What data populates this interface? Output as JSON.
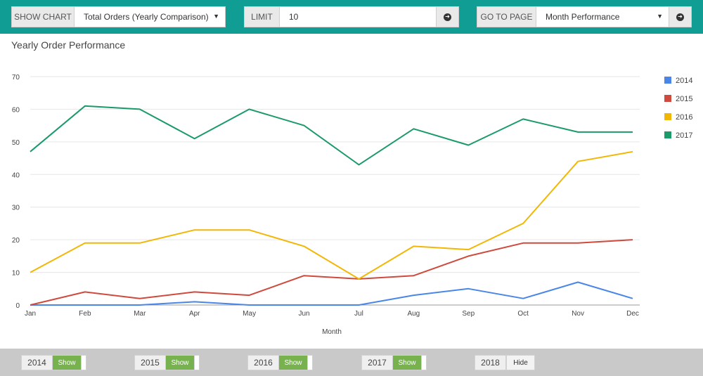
{
  "toolbar": {
    "show_chart_label": "SHOW CHART",
    "show_chart_value": "Total Orders (Yearly Comparison)",
    "limit_label": "LIMIT",
    "limit_value": "10",
    "go_to_page_label": "GO TO PAGE",
    "go_to_page_value": "Month Performance"
  },
  "colors": {
    "toolbar_bg": "#109d94",
    "s2014": "#4a86e8",
    "s2015": "#cf4a3c",
    "s2016": "#f2b705",
    "s2017": "#1b9a6a",
    "toggle_on": "#78b24f"
  },
  "chart_data": {
    "type": "line",
    "title": "Yearly Order Performance",
    "xlabel": "Month",
    "ylabel": "",
    "ylim": [
      0,
      70
    ],
    "yticks": [
      0,
      10,
      20,
      30,
      40,
      50,
      60,
      70
    ],
    "grid": true,
    "legend_position": "right",
    "categories": [
      "Jan",
      "Feb",
      "Mar",
      "Apr",
      "May",
      "Jun",
      "Jul",
      "Aug",
      "Sep",
      "Oct",
      "Nov",
      "Dec"
    ],
    "series": [
      {
        "name": "2014",
        "color": "#4a86e8",
        "values": [
          0,
          0,
          0,
          1,
          0,
          0,
          0,
          3,
          5,
          2,
          7,
          2
        ]
      },
      {
        "name": "2015",
        "color": "#cf4a3c",
        "values": [
          0,
          4,
          2,
          4,
          3,
          9,
          8,
          9,
          15,
          19,
          19,
          20
        ]
      },
      {
        "name": "2016",
        "color": "#f2b705",
        "values": [
          10,
          19,
          19,
          23,
          23,
          18,
          8,
          18,
          17,
          25,
          44,
          47
        ]
      },
      {
        "name": "2017",
        "color": "#1b9a6a",
        "values": [
          47,
          61,
          60,
          51,
          60,
          55,
          43,
          54,
          49,
          57,
          53,
          53
        ]
      }
    ]
  },
  "year_toggles": [
    {
      "year": "2014",
      "state": "Show"
    },
    {
      "year": "2015",
      "state": "Show"
    },
    {
      "year": "2016",
      "state": "Show"
    },
    {
      "year": "2017",
      "state": "Show"
    },
    {
      "year": "2018",
      "state": "Hide"
    }
  ]
}
